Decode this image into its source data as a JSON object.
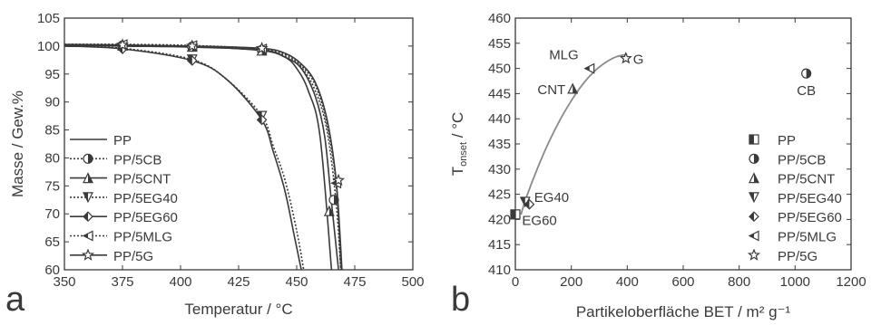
{
  "panel_labels": {
    "left": "a",
    "right": "b"
  },
  "chart_data": [
    {
      "type": "line",
      "xlabel": "Temperatur / °C",
      "ylabel": "Masse / Gew.%",
      "xlim": [
        350,
        500
      ],
      "ylim": [
        60,
        105
      ],
      "xticks": [
        "350",
        "375",
        "400",
        "425",
        "450",
        "475",
        "500"
      ],
      "yticks": [
        "60",
        "65",
        "70",
        "75",
        "80",
        "85",
        "90",
        "95",
        "100",
        "105"
      ],
      "legend_position": "bottom-left",
      "series": [
        {
          "name": "PP",
          "marker": "half-square",
          "linestyle": "solid",
          "x": [
            350,
            375,
            405,
            435,
            445,
            450,
            455,
            460,
            465
          ],
          "y": [
            100.2,
            100,
            99.8,
            99.3,
            98,
            96,
            92,
            84,
            60
          ]
        },
        {
          "name": "PP/5CB",
          "marker": "half-circle",
          "linestyle": "dotted",
          "x": [
            350,
            375,
            405,
            435,
            445,
            452,
            458,
            463,
            467,
            469
          ],
          "y": [
            100.2,
            100.1,
            99.9,
            99.3,
            98.2,
            96.2,
            92,
            85,
            72,
            60
          ],
          "marker_points": [
            [
              375,
              100.1
            ],
            [
              405,
              99.9
            ],
            [
              435,
              99.3
            ],
            [
              466,
              72.5
            ]
          ]
        },
        {
          "name": "PP/5CNT",
          "marker": "half-triangle-up",
          "linestyle": "solid",
          "x": [
            350,
            375,
            405,
            435,
            445,
            452,
            458,
            462,
            465,
            468
          ],
          "y": [
            100.2,
            100.1,
            99.9,
            99.2,
            98,
            96,
            91,
            84,
            72,
            60
          ],
          "marker_points": [
            [
              375,
              100.1
            ],
            [
              405,
              99.9
            ],
            [
              435,
              99.2
            ],
            [
              464,
              70.5
            ]
          ]
        },
        {
          "name": "PP/5EG40",
          "marker": "half-triangle-down",
          "linestyle": "dotted",
          "x": [
            350,
            375,
            405,
            420,
            435,
            440,
            445,
            450,
            453
          ],
          "y": [
            100,
            99.6,
            97.6,
            94,
            87.5,
            82,
            76,
            67,
            60
          ],
          "marker_points": [
            [
              375,
              99.6
            ],
            [
              405,
              97.6
            ],
            [
              435,
              87.5
            ]
          ]
        },
        {
          "name": "PP/5EG60",
          "marker": "half-diamond",
          "linestyle": "solid",
          "x": [
            350,
            375,
            405,
            420,
            435,
            440,
            445,
            449,
            452
          ],
          "y": [
            100,
            99.5,
            97.4,
            94,
            86.8,
            81,
            74,
            66,
            60
          ],
          "marker_points": [
            [
              375,
              99.5
            ],
            [
              405,
              97.4
            ],
            [
              435,
              86.8
            ]
          ]
        },
        {
          "name": "PP/5MLG",
          "marker": "half-triangle-left",
          "linestyle": "dotted",
          "x": [
            350,
            375,
            405,
            435,
            445,
            452,
            458,
            463,
            467,
            469
          ],
          "y": [
            100.3,
            100.3,
            100.1,
            99.5,
            98.5,
            96.5,
            93,
            86,
            75,
            60
          ],
          "marker_points": [
            [
              375,
              100.3
            ],
            [
              405,
              100.1
            ],
            [
              435,
              99.5
            ],
            [
              467,
              75.5
            ]
          ]
        },
        {
          "name": "PP/5G",
          "marker": "star",
          "linestyle": "solid",
          "x": [
            350,
            375,
            405,
            435,
            445,
            452,
            458,
            463,
            467,
            469.5
          ],
          "y": [
            100.3,
            100.2,
            100,
            99.6,
            98.7,
            96.8,
            93.5,
            87,
            76,
            60
          ],
          "marker_points": [
            [
              375,
              100.2
            ],
            [
              405,
              100
            ],
            [
              435,
              99.6
            ],
            [
              468,
              76
            ]
          ]
        }
      ]
    },
    {
      "type": "scatter",
      "xlabel": "Partikeloberfläche BET / m² g⁻¹",
      "ylabel_main": "T",
      "ylabel_sub": "onset",
      "ylabel_unit": " / °C",
      "xlim": [
        0,
        1200
      ],
      "ylim": [
        410,
        460
      ],
      "xticks": [
        "0",
        "200",
        "400",
        "600",
        "800",
        "1000",
        "1200"
      ],
      "yticks": [
        "410",
        "415",
        "420",
        "425",
        "430",
        "435",
        "440",
        "445",
        "450",
        "455",
        "460"
      ],
      "legend_position": "bottom-right",
      "fit_curve": {
        "x": [
          20,
          40,
          80,
          120,
          160,
          200,
          240,
          280,
          320,
          360,
          400
        ],
        "y": [
          421,
          424.5,
          430.3,
          435.4,
          439.8,
          443.6,
          446.8,
          449.3,
          451.1,
          452.3,
          452.8
        ]
      },
      "points": [
        {
          "name": "PP",
          "label": "",
          "marker": "half-square",
          "x": 0,
          "y": 421
        },
        {
          "name": "PP/5CB",
          "label": "CB",
          "marker": "half-circle",
          "x": 1040,
          "y": 449
        },
        {
          "name": "PP/5CNT",
          "label": "CNT",
          "marker": "half-triangle-up",
          "x": 205,
          "y": 446
        },
        {
          "name": "PP/5EG40",
          "label": "EG40",
          "marker": "half-triangle-down",
          "x": 35,
          "y": 423.5
        },
        {
          "name": "PP/5EG60",
          "label": "EG60",
          "marker": "half-diamond",
          "x": 50,
          "y": 423
        },
        {
          "name": "PP/5MLG",
          "label": "MLG",
          "marker": "half-triangle-left",
          "x": 265,
          "y": 450
        },
        {
          "name": "PP/5G",
          "label": "G",
          "marker": "star",
          "x": 395,
          "y": 452
        }
      ]
    }
  ]
}
